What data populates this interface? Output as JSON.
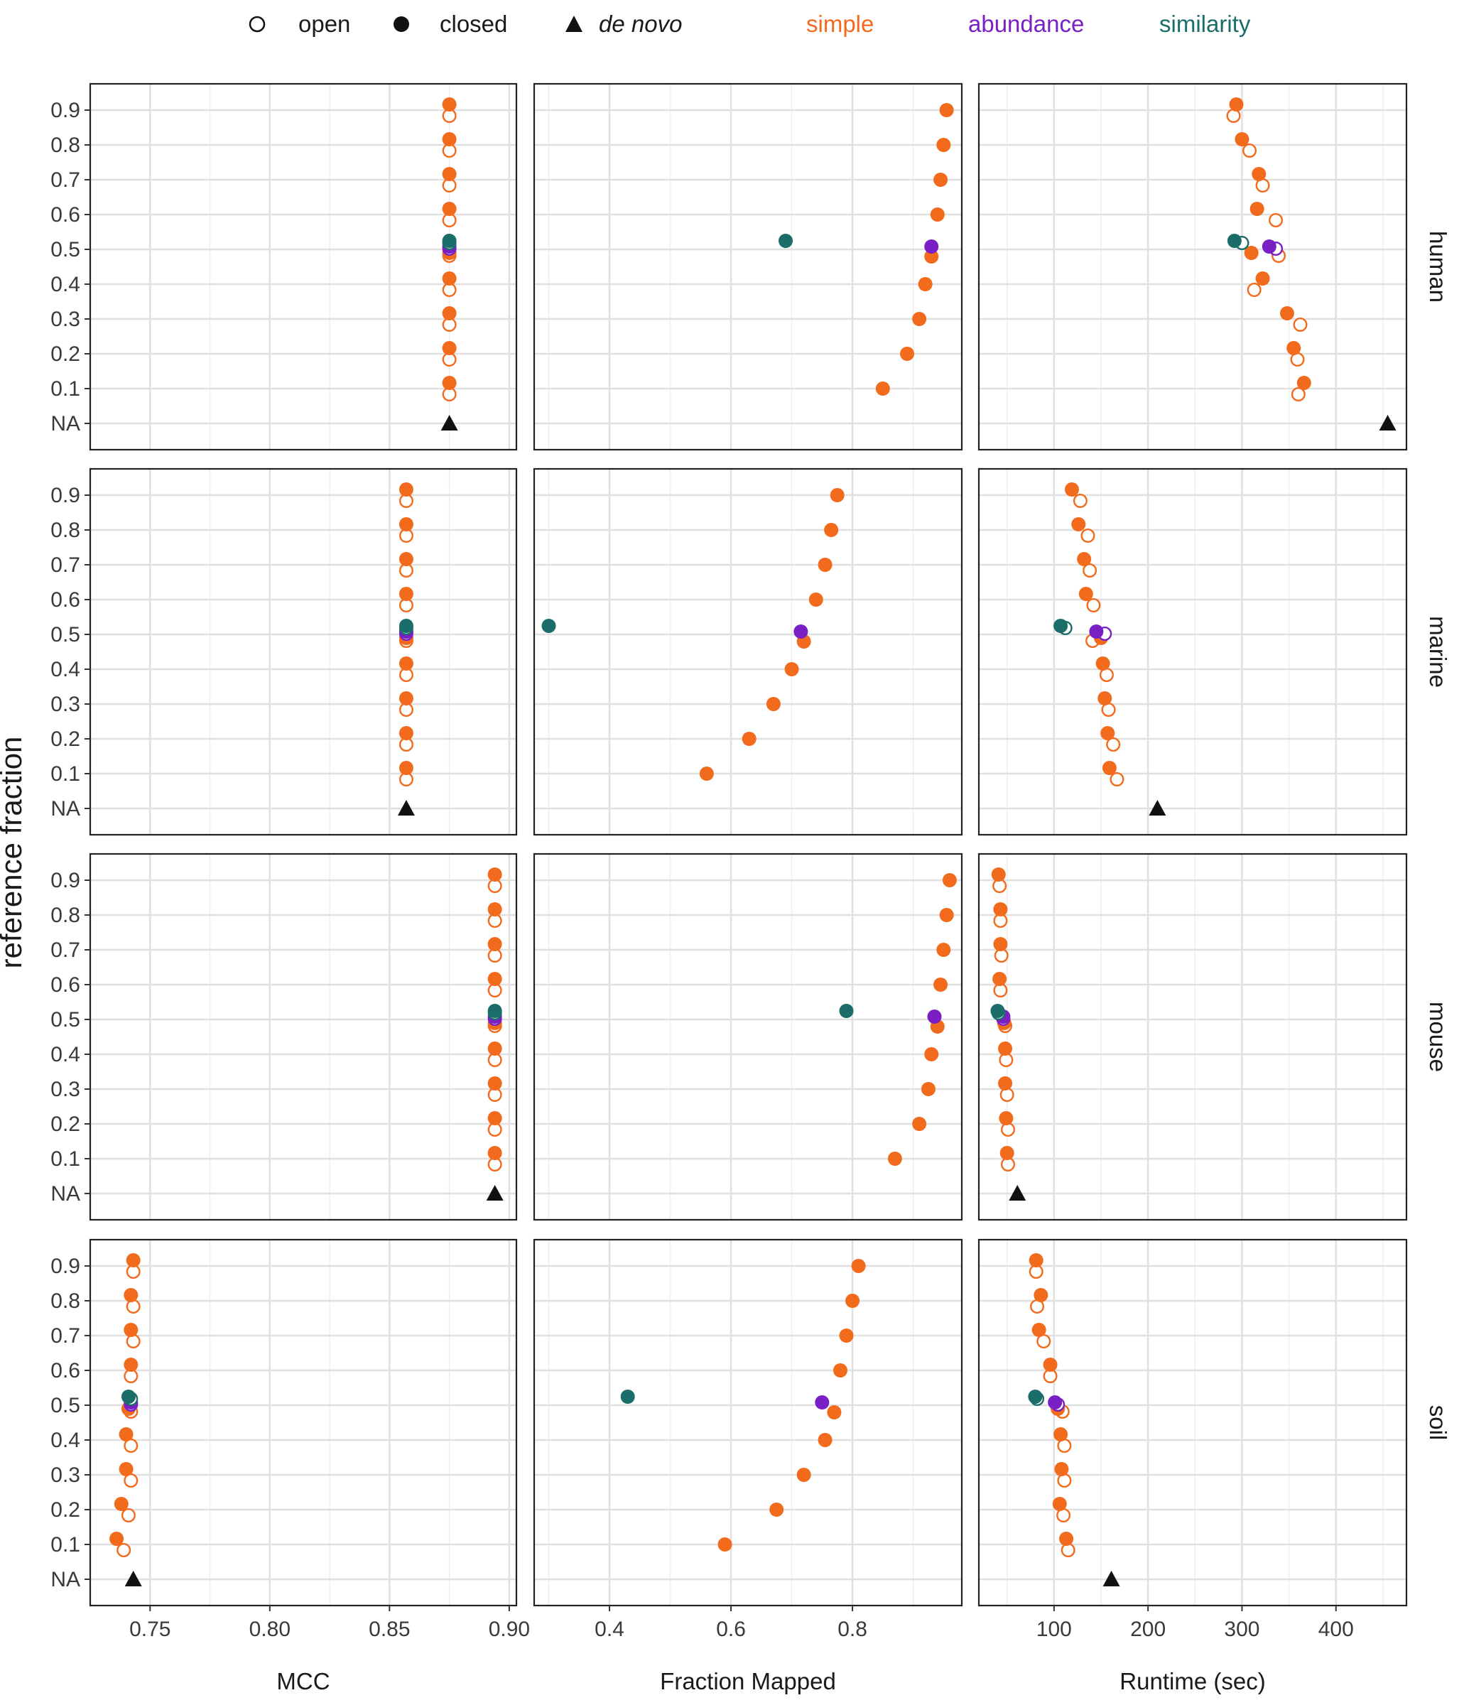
{
  "legend": {
    "shapes": [
      {
        "label": "open",
        "symbol": "open-circle"
      },
      {
        "label": "closed",
        "symbol": "closed-circle"
      },
      {
        "label": "de novo",
        "symbol": "triangle",
        "italic": true
      }
    ],
    "methods": [
      {
        "label": "simple",
        "color": "#F26B1D"
      },
      {
        "label": "abundance",
        "color": "#7A1FC4"
      },
      {
        "label": "similarity",
        "color": "#1B6D6A"
      }
    ]
  },
  "chart_data": {
    "type": "scatter",
    "ylabel": "reference fraction",
    "y_categories": [
      "NA",
      "0.1",
      "0.2",
      "0.3",
      "0.4",
      "0.5",
      "0.6",
      "0.7",
      "0.8",
      "0.9"
    ],
    "grid": true,
    "columns": [
      {
        "key": "mcc",
        "xlabel": "MCC",
        "xlim": [
          0.725,
          0.903
        ],
        "ticks": [
          0.75,
          0.8,
          0.85,
          0.9
        ],
        "tick_labels": [
          "0.75",
          "0.80",
          "0.85",
          "0.90"
        ]
      },
      {
        "key": "frac",
        "xlabel": "Fraction Mapped",
        "xlim": [
          0.276,
          0.98
        ],
        "ticks": [
          0.4,
          0.6,
          0.8
        ],
        "tick_labels": [
          "0.4",
          "0.6",
          "0.8"
        ]
      },
      {
        "key": "rt",
        "xlabel": "Runtime (sec)",
        "xlim": [
          20,
          475
        ],
        "ticks": [
          100,
          200,
          300,
          400
        ],
        "tick_labels": [
          "100",
          "200",
          "300",
          "400"
        ]
      }
    ],
    "rows": [
      {
        "name": "human",
        "mcc": {
          "simple_closed": [
            0.875,
            0.875,
            0.875,
            0.875,
            0.875,
            0.875,
            0.875,
            0.875,
            0.875
          ],
          "simple_open": [
            0.875,
            0.875,
            0.875,
            0.875,
            0.875,
            0.875,
            0.875,
            0.875,
            0.875
          ],
          "abundance_closed": 0.875,
          "abundance_open": 0.875,
          "similarity_closed": 0.875,
          "similarity_open": 0.875,
          "denovo": 0.875
        },
        "frac": {
          "simple_closed": [
            0.85,
            0.89,
            0.91,
            0.92,
            0.93,
            0.94,
            0.945,
            0.95,
            0.955
          ],
          "simple_open": [
            0.85,
            0.89,
            0.91,
            0.92,
            0.93,
            0.94,
            0.945,
            0.95,
            0.955
          ],
          "abundance_closed": 0.93,
          "abundance_open": 0.93,
          "similarity_closed": 0.69,
          "similarity_open": 0.69,
          "denovo": null
        },
        "rt": {
          "simple_closed": [
            366,
            355,
            348,
            322,
            310,
            316,
            318,
            300,
            294
          ],
          "simple_open": [
            360,
            359,
            362,
            313,
            339,
            336,
            322,
            308,
            291
          ],
          "abundance_closed": 329,
          "abundance_open": 336,
          "similarity_closed": 292,
          "similarity_open": 300,
          "denovo": 455
        }
      },
      {
        "name": "marine",
        "mcc": {
          "simple_closed": [
            0.857,
            0.857,
            0.857,
            0.857,
            0.857,
            0.857,
            0.857,
            0.857,
            0.857
          ],
          "simple_open": [
            0.857,
            0.857,
            0.857,
            0.857,
            0.857,
            0.857,
            0.857,
            0.857,
            0.857
          ],
          "abundance_closed": 0.857,
          "abundance_open": 0.857,
          "similarity_closed": 0.857,
          "similarity_open": 0.857,
          "denovo": 0.857
        },
        "frac": {
          "simple_closed": [
            0.56,
            0.63,
            0.67,
            0.7,
            0.72,
            0.74,
            0.755,
            0.765,
            0.775
          ],
          "simple_open": [
            0.56,
            0.63,
            0.67,
            0.7,
            0.72,
            0.74,
            0.755,
            0.765,
            0.775
          ],
          "abundance_closed": 0.715,
          "abundance_open": 0.715,
          "similarity_closed": 0.3,
          "similarity_open": 0.3,
          "denovo": null
        },
        "rt": {
          "simple_closed": [
            159,
            157,
            154,
            152,
            150,
            134,
            132,
            126,
            119
          ],
          "simple_open": [
            167,
            163,
            158,
            156,
            141,
            142,
            138,
            136,
            128
          ],
          "abundance_closed": 145,
          "abundance_open": 154,
          "similarity_closed": 107,
          "similarity_open": 112,
          "denovo": 210
        }
      },
      {
        "name": "mouse",
        "mcc": {
          "simple_closed": [
            0.894,
            0.894,
            0.894,
            0.894,
            0.894,
            0.894,
            0.894,
            0.894,
            0.894
          ],
          "simple_open": [
            0.894,
            0.894,
            0.894,
            0.894,
            0.894,
            0.894,
            0.894,
            0.894,
            0.894
          ],
          "abundance_closed": 0.894,
          "abundance_open": 0.894,
          "similarity_closed": 0.894,
          "similarity_open": 0.894,
          "denovo": 0.894
        },
        "frac": {
          "simple_closed": [
            0.87,
            0.91,
            0.925,
            0.93,
            0.94,
            0.945,
            0.95,
            0.955,
            0.96
          ],
          "simple_open": [
            0.87,
            0.91,
            0.925,
            0.93,
            0.94,
            0.945,
            0.95,
            0.955,
            0.96
          ],
          "abundance_closed": 0.935,
          "abundance_open": 0.935,
          "similarity_closed": 0.79,
          "similarity_open": 0.79,
          "denovo": null
        },
        "rt": {
          "simple_closed": [
            50,
            49,
            48,
            48,
            47,
            42,
            43,
            43,
            41
          ],
          "simple_open": [
            51,
            51,
            50,
            49,
            48,
            43,
            44,
            43,
            42
          ],
          "abundance_closed": 46,
          "abundance_open": 46,
          "similarity_closed": 40,
          "similarity_open": 41,
          "denovo": 61
        }
      },
      {
        "name": "soil",
        "mcc": {
          "simple_closed": [
            0.736,
            0.738,
            0.74,
            0.74,
            0.741,
            0.742,
            0.742,
            0.742,
            0.743
          ],
          "simple_open": [
            0.739,
            0.741,
            0.742,
            0.742,
            0.742,
            0.742,
            0.743,
            0.743,
            0.743
          ],
          "abundance_closed": 0.742,
          "abundance_open": 0.742,
          "similarity_closed": 0.741,
          "similarity_open": 0.742,
          "denovo": 0.743
        },
        "frac": {
          "simple_closed": [
            0.59,
            0.675,
            0.72,
            0.755,
            0.77,
            0.78,
            0.79,
            0.8,
            0.81
          ],
          "simple_open": [
            0.59,
            0.675,
            0.72,
            0.755,
            0.77,
            0.78,
            0.79,
            0.8,
            0.81
          ],
          "abundance_closed": 0.75,
          "abundance_open": 0.75,
          "similarity_closed": 0.43,
          "similarity_open": 0.43,
          "denovo": null
        },
        "rt": {
          "simple_closed": [
            113,
            106,
            108,
            107,
            104,
            96,
            84,
            86,
            81
          ],
          "simple_open": [
            115,
            110,
            111,
            111,
            109,
            96,
            89,
            82,
            81
          ],
          "abundance_closed": 101,
          "abundance_open": 104,
          "similarity_closed": 80,
          "similarity_open": 82,
          "denovo": 161
        }
      }
    ]
  }
}
